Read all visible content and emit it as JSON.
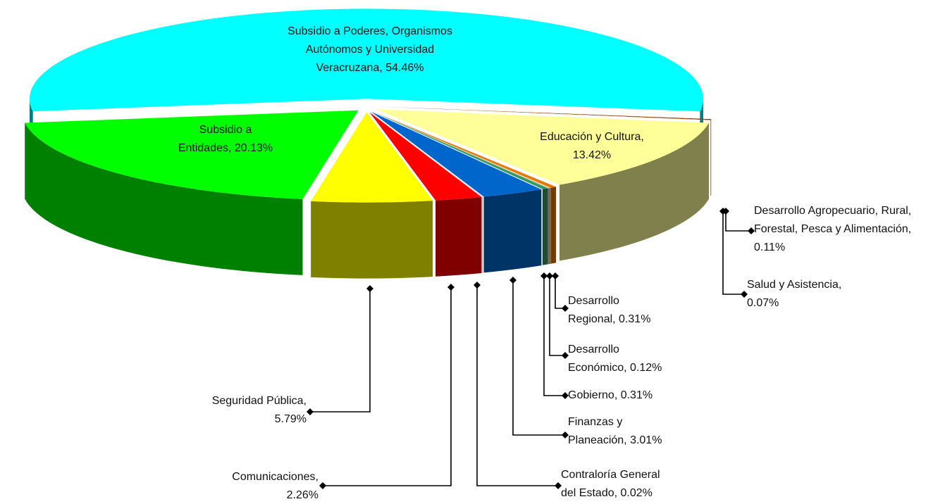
{
  "chart_data": {
    "type": "pie",
    "categories": [
      "Subsidio a Poderes, Organismos Autónomos y Universidad Veracruzana, 54.46%",
      "Desarrollo Agropecuario, Rural, Forestal, Pesca y Alimentación, 0.11%",
      "Salud y Asistencia, 0.07%",
      "Educación y Cultura, 13.42%",
      "Desarrollo Regional, 0.31%",
      "Desarrollo Económico, 0.12%",
      "Gobierno, 0.31%",
      "Finanzas y Planeación, 3.01%",
      "Contraloría General del Estado, 0.02%",
      "Comunicaciones, 2.26%",
      "Seguridad Pública, 5.79%",
      "Subsidio a Entidades, 20.13%"
    ],
    "values": [
      54.46,
      0.11,
      0.07,
      13.42,
      0.31,
      0.12,
      0.31,
      3.01,
      0.02,
      2.26,
      5.79,
      20.13
    ],
    "colors": [
      "#00ffff",
      "#6b2200",
      "#d96c00",
      "#ffff99",
      "#e07a10",
      "#ffcc99",
      "#339966",
      "#0066cc",
      "#aaaaff",
      "#ff0000",
      "#ffff00",
      "#00ff00"
    ]
  }
}
